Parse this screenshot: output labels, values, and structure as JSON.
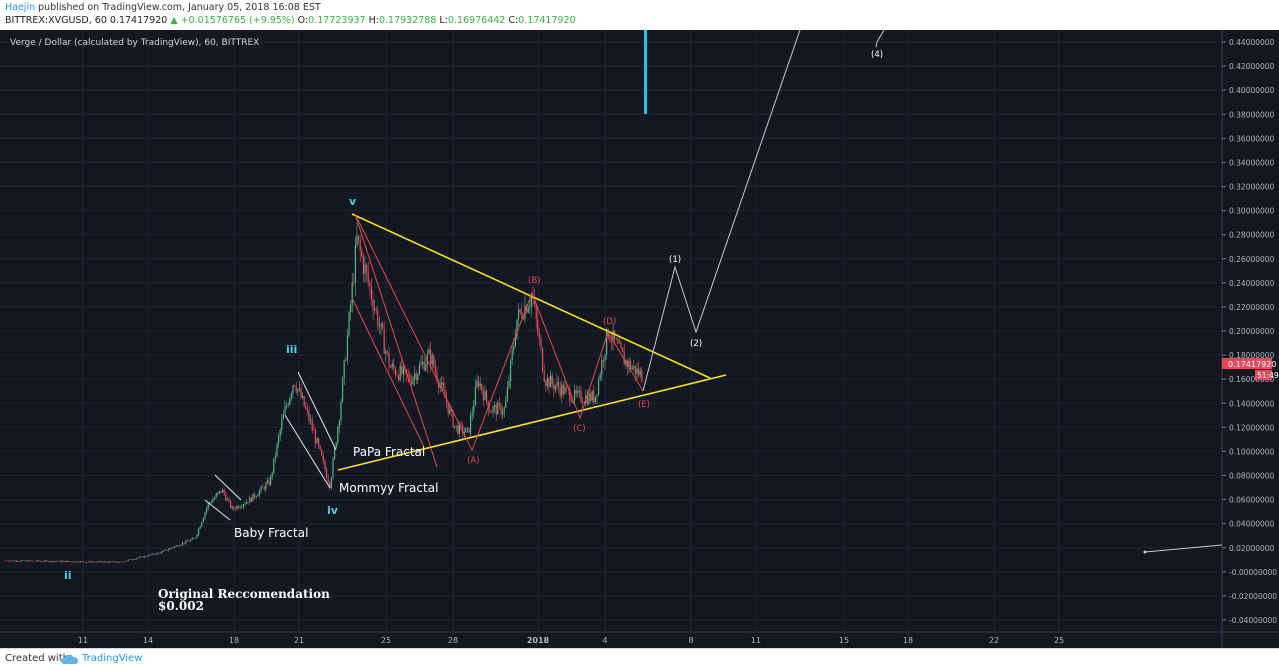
{
  "header": {
    "author": "Haejin",
    "published_text": " published on TradingView.com, January 05, 2018 16:08 EST",
    "symbol_line": "BITTREX:XVGUSD, 60  0.17417920",
    "change": " ▲ +0.01576765 (+9.95%)",
    "open_label": "O:",
    "open": "0.17723937",
    "high_label": "H:",
    "high": "0.17932788",
    "low_label": "L:",
    "low": "0.16976442",
    "close_label": "C:",
    "close": "0.17417920"
  },
  "chart_data": {
    "type": "candlestick",
    "title": "Verge / Dollar (calculated by TradingView), 60, BITTREX",
    "x_ticks": [
      "11",
      "14",
      "18",
      "21",
      "25",
      "28",
      "2018",
      "4",
      "8",
      "11",
      "15",
      "18",
      "22",
      "25"
    ],
    "y_ticks": [
      "0.44000000",
      "0.42000000",
      "0.40000000",
      "0.38000000",
      "0.36000000",
      "0.34000000",
      "0.32000000",
      "0.30000000",
      "0.28000000",
      "0.26000000",
      "0.24000000",
      "0.22000000",
      "0.20000000",
      "0.18000000",
      "0.16000000",
      "0.14000000",
      "0.12000000",
      "0.10000000",
      "0.08000000",
      "0.06000000",
      "0.04000000",
      "0.02000000",
      "-0.00000000",
      "-0.02000000",
      "-0.04000000"
    ],
    "ylim": [
      -0.045,
      0.455
    ],
    "last_price": "0.17417920",
    "countdown": "51:49",
    "colors": {
      "background": "#131722",
      "up": "#53b987",
      "down": "#eb4d5c",
      "triangle": "#f2e21f",
      "wave_red": "#e34a4a",
      "projection": "#c7c9cf",
      "fractal_lines": "#e6e6e6",
      "cyan_bar": "#26c6da",
      "wave_cyan": "#4dd0e1",
      "price_label": "#e34a5b"
    },
    "wave_labels": [
      "ii",
      "iii",
      "iv",
      "v"
    ],
    "corrective_labels": [
      "(A)",
      "(B)",
      "(C)",
      "(D)",
      "(E)"
    ],
    "projection_labels": [
      "(1)",
      "(2)",
      "(4)"
    ],
    "annotations": {
      "baby": "Baby Fractal",
      "mommy": "Mommyy Fractal",
      "papa": "PaPa Fractal",
      "orig1": "Original Reccomendation",
      "orig2": "$0.002"
    }
  },
  "footer": {
    "created_with": "Created with",
    "brand": "TradingView"
  }
}
